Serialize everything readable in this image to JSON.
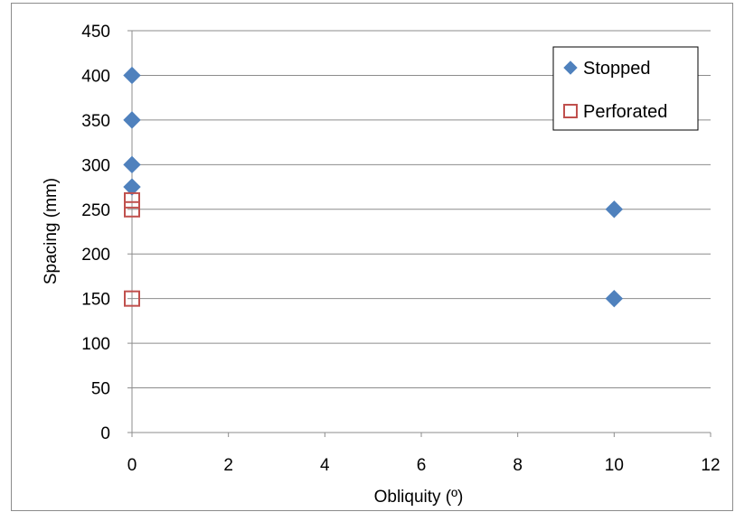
{
  "chart_data": {
    "type": "scatter",
    "title": "",
    "xlabel": "Obliquity (º)",
    "ylabel": "Spacing (mm)",
    "xlim": [
      0,
      12
    ],
    "ylim": [
      0,
      450
    ],
    "xticks": [
      0,
      2,
      4,
      6,
      8,
      10,
      12
    ],
    "yticks": [
      0,
      50,
      100,
      150,
      200,
      250,
      300,
      350,
      400,
      450
    ],
    "grid": "horizontal major gridlines",
    "legend_position": "top-right",
    "series": [
      {
        "name": "Stopped",
        "marker": "diamond",
        "color": "#4f81bd",
        "points": [
          {
            "x": 0,
            "y": 400
          },
          {
            "x": 0,
            "y": 350
          },
          {
            "x": 0,
            "y": 300
          },
          {
            "x": 0,
            "y": 275
          },
          {
            "x": 10,
            "y": 250
          },
          {
            "x": 10,
            "y": 150
          }
        ]
      },
      {
        "name": "Perforated",
        "marker": "square-open",
        "color": "#c0504d",
        "points": [
          {
            "x": 0,
            "y": 260
          },
          {
            "x": 0,
            "y": 250
          },
          {
            "x": 0,
            "y": 150
          }
        ]
      }
    ]
  }
}
